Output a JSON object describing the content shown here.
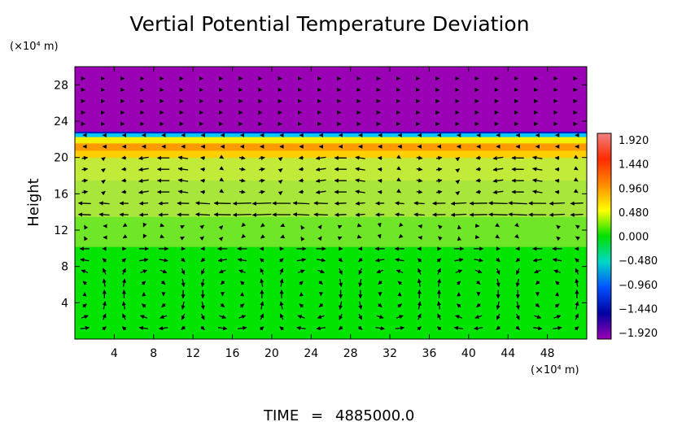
{
  "chart_data": {
    "type": "heatmap",
    "title": "Vertial Potential Temperature Deviation",
    "ylabel": "Height",
    "xlabel": "",
    "y_unit": "(×10⁴ m)",
    "x_unit": "(×10⁴ m)",
    "xlim": [
      0,
      52
    ],
    "ylim": [
      0,
      30
    ],
    "x_ticks": [
      "4",
      "8",
      "12",
      "16",
      "20",
      "24",
      "28",
      "32",
      "36",
      "40",
      "44",
      "48"
    ],
    "x_tick_values": [
      4,
      8,
      12,
      16,
      20,
      24,
      28,
      32,
      36,
      40,
      44,
      48
    ],
    "y_ticks": [
      "4",
      "8",
      "12",
      "16",
      "20",
      "24",
      "28"
    ],
    "y_tick_values": [
      4,
      8,
      12,
      16,
      20,
      24,
      28
    ],
    "colorbar": {
      "labels": [
        "1.920",
        "1.440",
        "0.960",
        "0.480",
        "0.000",
        "−0.480",
        "−0.960",
        "−1.440",
        "−1.920"
      ],
      "values": [
        1.92,
        1.44,
        0.96,
        0.48,
        0.0,
        -0.48,
        -0.96,
        -1.44,
        -1.92
      ],
      "colors_top_to_bottom": [
        "#f08080",
        "#ff2a00",
        "#ff8c00",
        "#ffff00",
        "#00e000",
        "#00d8c8",
        "#0050ff",
        "#0000a0",
        "#9a00b4"
      ]
    },
    "field_bands": [
      {
        "from": 0,
        "to": 10.2,
        "value": 0.0,
        "color": "#00e400"
      },
      {
        "from": 10.2,
        "to": 13.5,
        "value": 0.3,
        "color": "#70e628"
      },
      {
        "from": 13.5,
        "to": 17.5,
        "value": 0.45,
        "color": "#a8e63c"
      },
      {
        "from": 17.5,
        "to": 20.0,
        "value": 0.55,
        "color": "#c2ea38"
      },
      {
        "from": 20.0,
        "to": 20.8,
        "value": 0.9,
        "color": "#ffd000"
      },
      {
        "from": 20.8,
        "to": 21.6,
        "value": 1.2,
        "color": "#ff9a00"
      },
      {
        "from": 21.6,
        "to": 22.3,
        "value": 0.5,
        "color": "#f0f000"
      },
      {
        "from": 22.3,
        "to": 22.7,
        "value": -0.6,
        "color": "#00c8ff"
      },
      {
        "from": 22.7,
        "to": 22.9,
        "value": -1.4,
        "color": "#0020c0"
      },
      {
        "from": 22.9,
        "to": 30,
        "value": -1.92,
        "color": "#9a00b4"
      }
    ],
    "vector_field": "wind vectors (arrows)",
    "time_label": "TIME",
    "time_value": "4885000.0"
  }
}
